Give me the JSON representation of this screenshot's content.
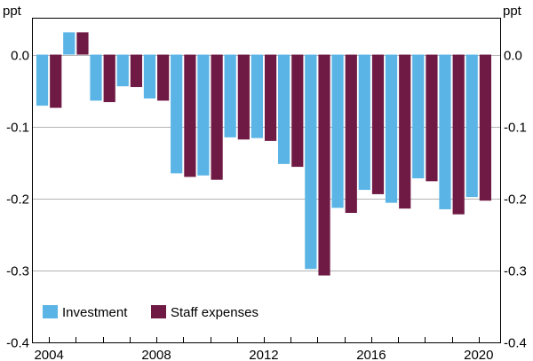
{
  "chart_data": {
    "type": "bar",
    "title": "",
    "ylabel_left": "ppt",
    "ylabel_right": "ppt",
    "ylim": [
      -0.4,
      0.05
    ],
    "yticks": [
      0.0,
      -0.1,
      -0.2,
      -0.3,
      -0.4
    ],
    "ytick_labels": [
      "0.0",
      "-0.1",
      "-0.2",
      "-0.3",
      "-0.4"
    ],
    "xlim": [
      2003.4,
      2020.8
    ],
    "xticks": [
      2004,
      2008,
      2012,
      2016,
      2020
    ],
    "xtick_labels": [
      "2004",
      "2008",
      "2012",
      "2016",
      "2020"
    ],
    "grid": true,
    "legend_position": "bottom-left",
    "categories": [
      2004,
      2005,
      2006,
      2007,
      2008,
      2009,
      2010,
      2011,
      2012,
      2013,
      2014,
      2015,
      2016,
      2017,
      2018,
      2019,
      2020
    ],
    "series": [
      {
        "name": "Investment",
        "color": "#5ab4e5",
        "values": [
          -0.071,
          0.031,
          -0.064,
          -0.044,
          -0.061,
          -0.165,
          -0.168,
          -0.115,
          -0.116,
          -0.152,
          -0.298,
          -0.213,
          -0.188,
          -0.206,
          -0.172,
          -0.215,
          -0.198
        ]
      },
      {
        "name": "Staff expenses",
        "color": "#6f1a44",
        "values": [
          -0.074,
          0.031,
          -0.066,
          -0.045,
          -0.064,
          -0.17,
          -0.174,
          -0.118,
          -0.12,
          -0.156,
          -0.307,
          -0.22,
          -0.194,
          -0.214,
          -0.176,
          -0.222,
          -0.203
        ]
      }
    ]
  }
}
